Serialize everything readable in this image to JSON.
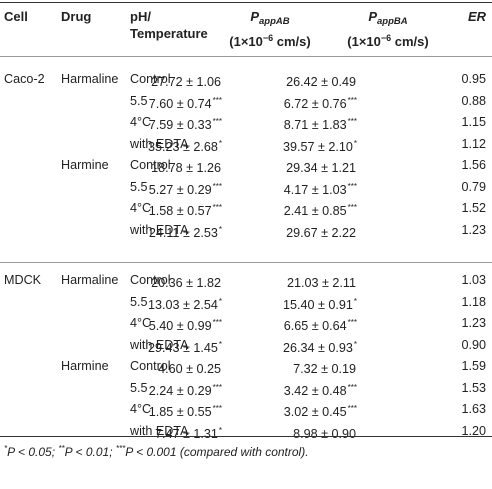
{
  "header": {
    "cell": "Cell",
    "drug": "Drug",
    "cond_line1": "pH/",
    "cond_line2": "Temperature",
    "pab_symbol": "P",
    "pab_sub": "appAB",
    "pab_unit_a": "(1×10",
    "pab_unit_exp": "−6",
    "pab_unit_b": " cm/s)",
    "pba_symbol": "P",
    "pba_sub": "appBA",
    "pba_unit_a": "(1×10",
    "pba_unit_exp": "−6",
    "pba_unit_b": " cm/s)",
    "er": "ER"
  },
  "groups": [
    {
      "cell": "Caco-2",
      "rows": [
        {
          "drug": "Harmaline",
          "cond": "Control",
          "ab": "27.72 ± 1.06",
          "ab_stars": "",
          "ba": "26.42 ± 0.49",
          "ba_stars": "",
          "er": "0.95"
        },
        {
          "drug": "",
          "cond": "5.5",
          "ab": "7.60 ± 0.74",
          "ab_stars": "***",
          "ba": "6.72 ± 0.76",
          "ba_stars": "***",
          "er": "0.88"
        },
        {
          "drug": "",
          "cond": "4°C",
          "ab": "7.59 ± 0.33",
          "ab_stars": "***",
          "ba": "8.71 ± 1.83",
          "ba_stars": "***",
          "er": "1.15"
        },
        {
          "drug": "",
          "cond": "with EDTA",
          "ab": "35.23 ± 2.68",
          "ab_stars": "*",
          "ba": "39.57 ± 2.10",
          "ba_stars": "*",
          "er": "1.12"
        },
        {
          "drug": "Harmine",
          "cond": "Control",
          "ab": "18.78 ± 1.26",
          "ab_stars": "",
          "ba": "29.34 ± 1.21",
          "ba_stars": "",
          "er": "1.56"
        },
        {
          "drug": "",
          "cond": "5.5",
          "ab": "5.27 ± 0.29",
          "ab_stars": "***",
          "ba": "4.17 ± 1.03",
          "ba_stars": "***",
          "er": "0.79"
        },
        {
          "drug": "",
          "cond": "4°C",
          "ab": "1.58 ± 0.57",
          "ab_stars": "***",
          "ba": "2.41 ± 0.85",
          "ba_stars": "***",
          "er": "1.52"
        },
        {
          "drug": "",
          "cond": "with EDTA",
          "ab": "24.11 ± 2.53",
          "ab_stars": "*",
          "ba": "29.67 ± 2.22",
          "ba_stars": "",
          "er": "1.23"
        }
      ]
    },
    {
      "cell": "MDCK",
      "rows": [
        {
          "drug": "Harmaline",
          "cond": "Control",
          "ab": "20.36 ± 1.82",
          "ab_stars": "",
          "ba": "21.03 ± 2.11",
          "ba_stars": "",
          "er": "1.03"
        },
        {
          "drug": "",
          "cond": "5.5",
          "ab": "13.03 ± 2.54",
          "ab_stars": "*",
          "ba": "15.40 ± 0.91",
          "ba_stars": "*",
          "er": "1.18"
        },
        {
          "drug": "",
          "cond": "4°C",
          "ab": "5.40 ± 0.99",
          "ab_stars": "***",
          "ba": "6.65 ± 0.64",
          "ba_stars": "***",
          "er": "1.23"
        },
        {
          "drug": "",
          "cond": "with EDTA",
          "ab": "29.43 ± 1.45",
          "ab_stars": "*",
          "ba": "26.34 ± 0.93",
          "ba_stars": "*",
          "er": "0.90"
        },
        {
          "drug": "Harmine",
          "cond": "Control",
          "ab": "4.60 ± 0.25",
          "ab_stars": "",
          "ba": "7.32 ± 0.19",
          "ba_stars": "",
          "er": "1.59"
        },
        {
          "drug": "",
          "cond": "5.5",
          "ab": "2.24 ± 0.29",
          "ab_stars": "***",
          "ba": "3.42 ± 0.48",
          "ba_stars": "***",
          "er": "1.53"
        },
        {
          "drug": "",
          "cond": "4°C",
          "ab": "1.85 ± 0.55",
          "ab_stars": "***",
          "ba": "3.02 ± 0.45",
          "ba_stars": "***",
          "er": "1.63"
        },
        {
          "drug": "",
          "cond": "with EDTA",
          "ab": "7.47 ± 1.31",
          "ab_stars": "*",
          "ba": "8.98 ± 0.90",
          "ba_stars": "",
          "er": "1.20"
        }
      ]
    }
  ],
  "footnote": {
    "p1_star": "*",
    "p1": "P < 0.05; ",
    "p2_star": "**",
    "p2": "P < 0.01; ",
    "p3_star": "***",
    "p3": "P < 0.001 (compared with control)."
  }
}
